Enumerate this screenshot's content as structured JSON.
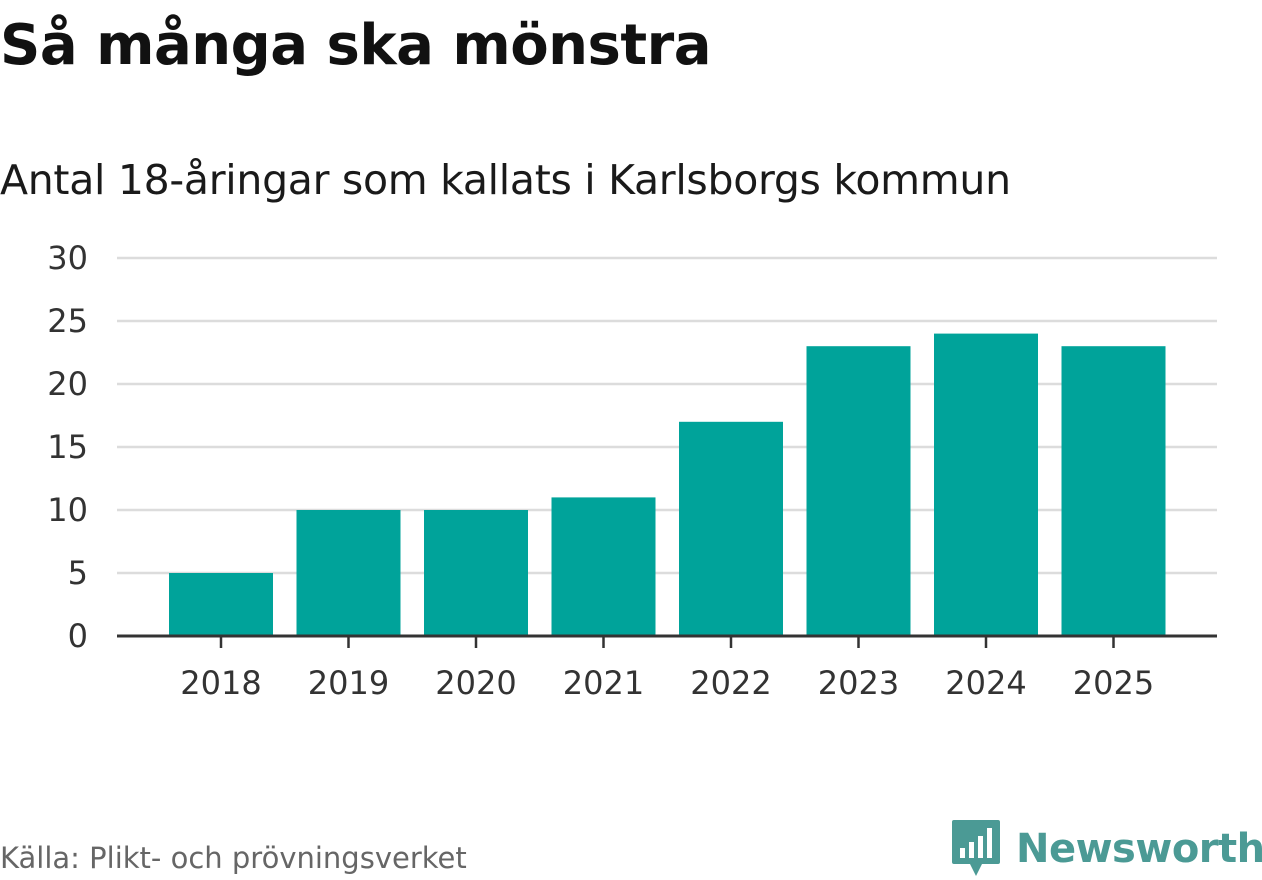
{
  "title": "Så många ska mönstra",
  "subtitle": "Antal 18-åringar som kallats i Karlsborgs kommun",
  "source": "Källa: Plikt- och prövningsverket",
  "brand": {
    "name": "Newsworthy",
    "icon": "newsworthy-logo-icon",
    "color": "#4b9a95"
  },
  "colors": {
    "bar": "#00a39a",
    "grid": "#dcdcdc",
    "axis": "#333333"
  },
  "chart_data": {
    "type": "bar",
    "title": "Så många ska mönstra",
    "subtitle": "Antal 18-åringar som kallats i Karlsborgs kommun",
    "xlabel": "",
    "ylabel": "",
    "categories": [
      "2018",
      "2019",
      "2020",
      "2021",
      "2022",
      "2023",
      "2024",
      "2025"
    ],
    "values": [
      5,
      10,
      10,
      11,
      17,
      23,
      24,
      23
    ],
    "ylim": [
      0,
      30
    ],
    "yticks": [
      0,
      5,
      10,
      15,
      20,
      25,
      30
    ],
    "grid": true,
    "legend": "none"
  }
}
